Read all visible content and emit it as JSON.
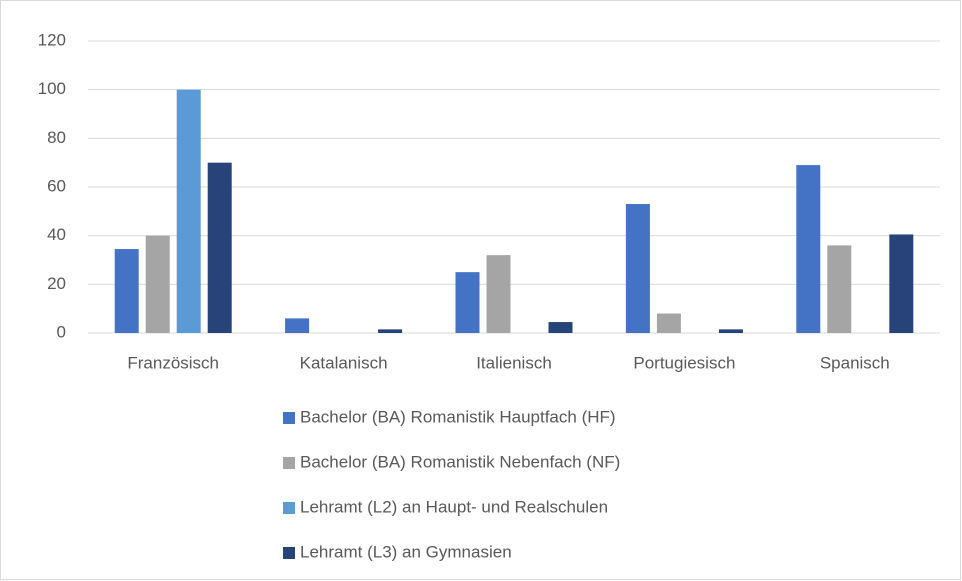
{
  "chart_data": {
    "type": "bar",
    "categories": [
      "Französisch",
      "Katalanisch",
      "Italienisch",
      "Portugiesisch",
      "Spanisch"
    ],
    "series": [
      {
        "name": "Bachelor (BA) Romanistik Hauptfach (HF)",
        "color": "#4472c4",
        "values": [
          34.5,
          6,
          25,
          53,
          69
        ]
      },
      {
        "name": "Bachelor (BA) Romanistik Nebenfach (NF)",
        "color": "#a5a5a5",
        "values": [
          40,
          0,
          32,
          8,
          36
        ]
      },
      {
        "name": "Lehramt (L2) an Haupt- und Realschulen",
        "color": "#5b9bd5",
        "values": [
          100,
          0,
          0,
          0,
          0
        ]
      },
      {
        "name": "Lehramt (L3) an Gymnasien",
        "color": "#264478",
        "values": [
          70,
          1.5,
          4.5,
          1.5,
          40.5
        ]
      }
    ],
    "ylim": [
      0,
      120
    ],
    "yticks": [
      0,
      20,
      40,
      60,
      80,
      100,
      120
    ],
    "grid": true,
    "legend": "bottom"
  }
}
